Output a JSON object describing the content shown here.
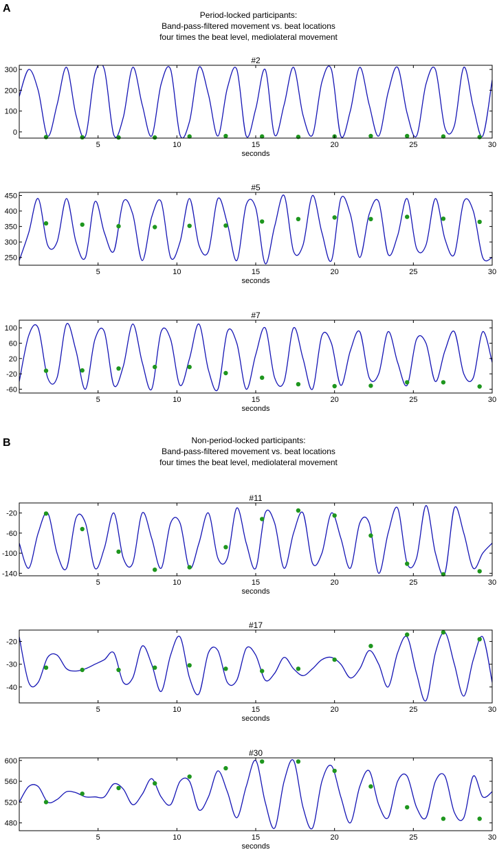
{
  "panel_a": {
    "letter": "A",
    "heading": [
      "Period-locked participants:",
      "Band-pass-filtered movement vs. beat locations",
      "four times the beat level, mediolateral movement"
    ]
  },
  "panel_b": {
    "letter": "B",
    "heading": [
      "Non-period-locked participants:",
      "Band-pass-filtered movement vs. beat locations",
      "four times the beat level, mediolateral movement"
    ]
  },
  "colors": {
    "line": "#1414b4",
    "beat": "#1e961e",
    "axis": "#000000"
  },
  "chart_data": [
    {
      "type": "line",
      "title": "#2",
      "xlabel": "seconds",
      "ylabel": "",
      "xlim": [
        0,
        30
      ],
      "ylim": [
        -30,
        320
      ],
      "xticks": [
        5,
        10,
        15,
        20,
        25,
        30
      ],
      "yticks": [
        0,
        100,
        200,
        300
      ],
      "series": [
        {
          "x": [
            0.0,
            0.6,
            1.2,
            1.8,
            2.4,
            3.0,
            3.6,
            4.2,
            4.8,
            5.4,
            6.0,
            6.6,
            7.2,
            7.8,
            8.4,
            9.0,
            9.6,
            10.2,
            10.8,
            11.4,
            12.0,
            12.6,
            13.2,
            13.8,
            14.4,
            15.0,
            15.6,
            16.2,
            16.8,
            17.4,
            18.0,
            18.6,
            19.2,
            19.8,
            20.4,
            21.0,
            21.6,
            22.2,
            22.8,
            23.4,
            24.0,
            24.6,
            25.2,
            25.8,
            26.4,
            27.0,
            27.6,
            28.2,
            28.8,
            29.4,
            30.0
          ],
          "y": [
            170,
            300,
            200,
            -20,
            130,
            310,
            80,
            -20,
            280,
            300,
            -15,
            70,
            310,
            130,
            -20,
            230,
            300,
            -15,
            50,
            310,
            180,
            -20,
            210,
            300,
            -20,
            110,
            300,
            -15,
            130,
            310,
            80,
            -15,
            240,
            300,
            -20,
            100,
            310,
            130,
            -20,
            190,
            310,
            90,
            -20,
            230,
            300,
            20,
            30,
            310,
            120,
            -20,
            250
          ]
        }
      ],
      "beats": {
        "x": [
          1.7,
          4.0,
          6.3,
          8.6,
          10.8,
          13.1,
          15.4,
          17.7,
          20.0,
          22.3,
          24.6,
          26.9,
          29.2
        ],
        "y": [
          -25,
          -26,
          -27,
          -27,
          -22,
          -20,
          -22,
          -24,
          -22,
          -20,
          -20,
          -22,
          -25
        ]
      }
    },
    {
      "type": "line",
      "title": "#5",
      "xlabel": "seconds",
      "ylabel": "",
      "xlim": [
        0,
        30
      ],
      "ylim": [
        225,
        460
      ],
      "xticks": [
        5,
        10,
        15,
        20,
        25,
        30
      ],
      "yticks": [
        250,
        300,
        350,
        400,
        450
      ],
      "series": [
        {
          "x": [
            0.0,
            0.6,
            1.2,
            1.8,
            2.4,
            3.0,
            3.6,
            4.2,
            4.8,
            5.4,
            6.0,
            6.6,
            7.2,
            7.8,
            8.4,
            9.0,
            9.6,
            10.2,
            10.8,
            11.4,
            12.0,
            12.6,
            13.2,
            13.8,
            14.4,
            15.0,
            15.6,
            16.2,
            16.8,
            17.4,
            18.0,
            18.6,
            19.2,
            19.8,
            20.4,
            21.0,
            21.6,
            22.2,
            22.8,
            23.4,
            24.0,
            24.6,
            25.2,
            25.8,
            26.4,
            27.0,
            27.6,
            28.2,
            28.8,
            29.4,
            30.0
          ],
          "y": [
            240,
            330,
            440,
            290,
            300,
            440,
            300,
            250,
            430,
            330,
            270,
            430,
            390,
            240,
            380,
            430,
            250,
            300,
            440,
            290,
            270,
            440,
            360,
            240,
            420,
            410,
            230,
            350,
            450,
            270,
            290,
            450,
            330,
            240,
            440,
            390,
            250,
            390,
            430,
            260,
            320,
            440,
            280,
            290,
            440,
            310,
            260,
            430,
            400,
            250,
            250
          ]
        }
      ],
      "beats": {
        "x": [
          1.7,
          4.0,
          6.3,
          8.6,
          10.8,
          13.1,
          15.4,
          17.7,
          20.0,
          22.3,
          24.6,
          26.9,
          29.2
        ],
        "y": [
          360,
          356,
          351,
          348,
          352,
          353,
          366,
          374,
          379,
          374,
          381,
          375,
          365
        ]
      }
    },
    {
      "type": "line",
      "title": "#7",
      "xlabel": "seconds",
      "ylabel": "",
      "xlim": [
        0,
        30
      ],
      "ylim": [
        -70,
        120
      ],
      "xticks": [
        5,
        10,
        15,
        20,
        25,
        30
      ],
      "yticks": [
        -60,
        -20,
        20,
        60,
        100
      ],
      "series": [
        {
          "x": [
            0.0,
            0.6,
            1.2,
            1.8,
            2.4,
            3.0,
            3.6,
            4.2,
            4.8,
            5.4,
            6.0,
            6.6,
            7.2,
            7.8,
            8.4,
            9.0,
            9.6,
            10.2,
            10.8,
            11.4,
            12.0,
            12.6,
            13.2,
            13.8,
            14.4,
            15.0,
            15.6,
            16.2,
            16.8,
            17.4,
            18.0,
            18.6,
            19.2,
            19.8,
            20.4,
            21.0,
            21.6,
            22.2,
            22.8,
            23.4,
            24.0,
            24.6,
            25.2,
            25.8,
            26.4,
            27.0,
            27.6,
            28.2,
            28.8,
            29.4,
            30.0
          ],
          "y": [
            -40,
            80,
            100,
            -30,
            -30,
            110,
            40,
            -60,
            70,
            90,
            -50,
            0,
            110,
            10,
            -60,
            90,
            70,
            -50,
            20,
            110,
            -10,
            -60,
            90,
            60,
            -60,
            30,
            100,
            -30,
            -40,
            100,
            20,
            -60,
            80,
            60,
            -50,
            40,
            90,
            -30,
            -20,
            90,
            10,
            -50,
            70,
            60,
            -40,
            40,
            90,
            -20,
            -30,
            90,
            10
          ]
        }
      ],
      "beats": {
        "x": [
          1.7,
          4.0,
          6.3,
          8.6,
          10.8,
          13.1,
          15.4,
          17.7,
          20.0,
          22.3,
          24.6,
          26.9,
          29.2
        ],
        "y": [
          -12,
          -11,
          -6,
          -2,
          -2,
          -18,
          -30,
          -47,
          -52,
          -51,
          -42,
          -42,
          -53
        ]
      }
    },
    {
      "type": "line",
      "title": "#11",
      "xlabel": "seconds",
      "ylabel": "",
      "xlim": [
        0,
        30
      ],
      "ylim": [
        -145,
        0
      ],
      "xticks": [
        5,
        10,
        15,
        20,
        25,
        30
      ],
      "yticks": [
        -140,
        -100,
        -60,
        -20
      ],
      "series": [
        {
          "x": [
            0.0,
            0.6,
            1.2,
            1.8,
            2.4,
            3.0,
            3.6,
            4.2,
            4.8,
            5.4,
            6.0,
            6.6,
            7.2,
            7.8,
            8.4,
            9.0,
            9.6,
            10.2,
            10.8,
            11.4,
            12.0,
            12.6,
            13.2,
            13.8,
            14.4,
            15.0,
            15.6,
            16.2,
            16.8,
            17.4,
            18.0,
            18.6,
            19.2,
            19.8,
            20.4,
            21.0,
            21.6,
            22.2,
            22.8,
            23.4,
            24.0,
            24.6,
            25.2,
            25.8,
            26.4,
            27.0,
            27.6,
            28.2,
            28.8,
            29.4,
            30.0
          ],
          "y": [
            -80,
            -130,
            -60,
            -20,
            -100,
            -130,
            -30,
            -40,
            -130,
            -90,
            -20,
            -110,
            -120,
            -20,
            -70,
            -130,
            -40,
            -40,
            -130,
            -80,
            -20,
            -110,
            -110,
            -10,
            -80,
            -130,
            -20,
            -40,
            -130,
            -60,
            -20,
            -120,
            -100,
            -20,
            -70,
            -130,
            -40,
            -40,
            -140,
            -60,
            -10,
            -120,
            -110,
            -5,
            -100,
            -140,
            -10,
            -60,
            -130,
            -100,
            -80
          ]
        }
      ],
      "beats": {
        "x": [
          1.7,
          4.0,
          6.3,
          8.6,
          10.8,
          13.1,
          15.4,
          17.7,
          20.0,
          22.3,
          24.6,
          26.9,
          29.2
        ],
        "y": [
          -21,
          -52,
          -97,
          -133,
          -128,
          -88,
          -32,
          -15,
          -25,
          -65,
          -121,
          -142,
          -136
        ]
      }
    },
    {
      "type": "line",
      "title": "#17",
      "xlabel": "seconds",
      "ylabel": "",
      "xlim": [
        0,
        30
      ],
      "ylim": [
        -47,
        -15
      ],
      "xticks": [
        5,
        10,
        15,
        20,
        25,
        30
      ],
      "yticks": [
        -40,
        -30,
        -20
      ],
      "series": [
        {
          "x": [
            0.0,
            0.6,
            1.2,
            1.8,
            2.4,
            3.0,
            3.6,
            4.2,
            4.8,
            5.4,
            6.0,
            6.6,
            7.2,
            7.8,
            8.4,
            9.0,
            9.6,
            10.2,
            10.8,
            11.4,
            12.0,
            12.6,
            13.2,
            13.8,
            14.4,
            15.0,
            15.6,
            16.2,
            16.8,
            17.4,
            18.0,
            18.6,
            19.2,
            19.8,
            20.4,
            21.0,
            21.6,
            22.2,
            22.8,
            23.4,
            24.0,
            24.6,
            25.2,
            25.8,
            26.4,
            27.0,
            27.6,
            28.2,
            28.8,
            29.4,
            30.0
          ],
          "y": [
            -18,
            -38,
            -38,
            -27,
            -26,
            -32,
            -33,
            -32,
            -30,
            -28,
            -25,
            -38,
            -36,
            -22,
            -30,
            -42,
            -26,
            -18,
            -36,
            -43,
            -25,
            -24,
            -38,
            -37,
            -23,
            -26,
            -37,
            -34,
            -27,
            -32,
            -35,
            -32,
            -28,
            -27,
            -30,
            -36,
            -32,
            -24,
            -30,
            -40,
            -25,
            -18,
            -34,
            -46,
            -25,
            -16,
            -30,
            -44,
            -28,
            -18,
            -38
          ]
        }
      ],
      "beats": {
        "x": [
          1.7,
          4.0,
          6.3,
          8.6,
          10.8,
          13.1,
          15.4,
          17.7,
          20.0,
          22.3,
          24.6,
          26.9,
          29.2
        ],
        "y": [
          -31.5,
          -32.5,
          -32.5,
          -31.5,
          -30.5,
          -32,
          -33,
          -32,
          -28,
          -22,
          -17,
          -16,
          -19
        ]
      }
    },
    {
      "type": "line",
      "title": "#30",
      "xlabel": "seconds",
      "ylabel": "",
      "xlim": [
        0,
        30
      ],
      "ylim": [
        465,
        605
      ],
      "xticks": [
        5,
        10,
        15,
        20,
        25,
        30
      ],
      "yticks": [
        480,
        520,
        560,
        600
      ],
      "series": [
        {
          "x": [
            0.0,
            0.6,
            1.2,
            1.8,
            2.4,
            3.0,
            3.6,
            4.2,
            4.8,
            5.4,
            6.0,
            6.6,
            7.2,
            7.8,
            8.4,
            9.0,
            9.6,
            10.2,
            10.8,
            11.4,
            12.0,
            12.6,
            13.2,
            13.8,
            14.4,
            15.0,
            15.6,
            16.2,
            16.8,
            17.4,
            18.0,
            18.6,
            19.2,
            19.8,
            20.4,
            21.0,
            21.6,
            22.2,
            22.8,
            23.4,
            24.0,
            24.6,
            25.2,
            25.8,
            26.4,
            27.0,
            27.6,
            28.2,
            28.8,
            29.4,
            30.0
          ],
          "y": [
            520,
            550,
            550,
            520,
            525,
            540,
            538,
            530,
            530,
            530,
            555,
            545,
            515,
            535,
            565,
            530,
            515,
            560,
            560,
            505,
            530,
            580,
            540,
            490,
            550,
            600,
            520,
            470,
            560,
            600,
            510,
            470,
            560,
            590,
            530,
            480,
            550,
            580,
            515,
            490,
            560,
            570,
            510,
            490,
            560,
            570,
            500,
            490,
            570,
            530,
            540
          ]
        }
      ],
      "beats": {
        "x": [
          1.7,
          4.0,
          6.3,
          8.6,
          10.8,
          13.1,
          15.4,
          17.7,
          20.0,
          22.3,
          24.6,
          26.9,
          29.2
        ],
        "y": [
          520,
          536,
          547,
          556,
          569,
          585,
          598,
          598,
          580,
          550,
          510,
          488,
          488
        ]
      }
    }
  ]
}
